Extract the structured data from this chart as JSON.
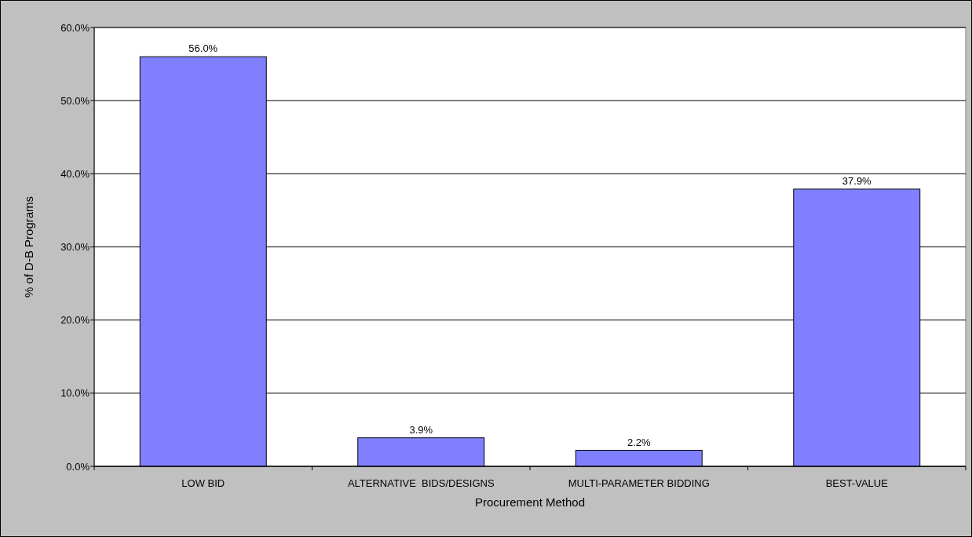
{
  "chart_data": {
    "type": "bar",
    "xlabel": "Procurement Method",
    "ylabel": "% of D-B Programs",
    "categories": [
      "LOW BID",
      "ALTERNATIVE  BIDS/DESIGNS",
      "MULTI-PARAMETER BIDDING",
      "BEST-VALUE"
    ],
    "values": [
      56.0,
      3.9,
      2.2,
      37.9
    ],
    "color": "#8080ff",
    "value_labels": [
      "56.0%",
      "3.9%",
      "2.2%",
      "37.9%"
    ],
    "ylim": [
      0,
      60
    ],
    "yticks": [
      {
        "value": 0,
        "label": "0.0%"
      },
      {
        "value": 10,
        "label": "10.0%"
      },
      {
        "value": 20,
        "label": "20.0%"
      },
      {
        "value": 30,
        "label": "30.0%"
      },
      {
        "value": 40,
        "label": "40.0%"
      },
      {
        "value": 50,
        "label": "50.0%"
      },
      {
        "value": 60,
        "label": "60.0%"
      }
    ],
    "grid": "y"
  }
}
